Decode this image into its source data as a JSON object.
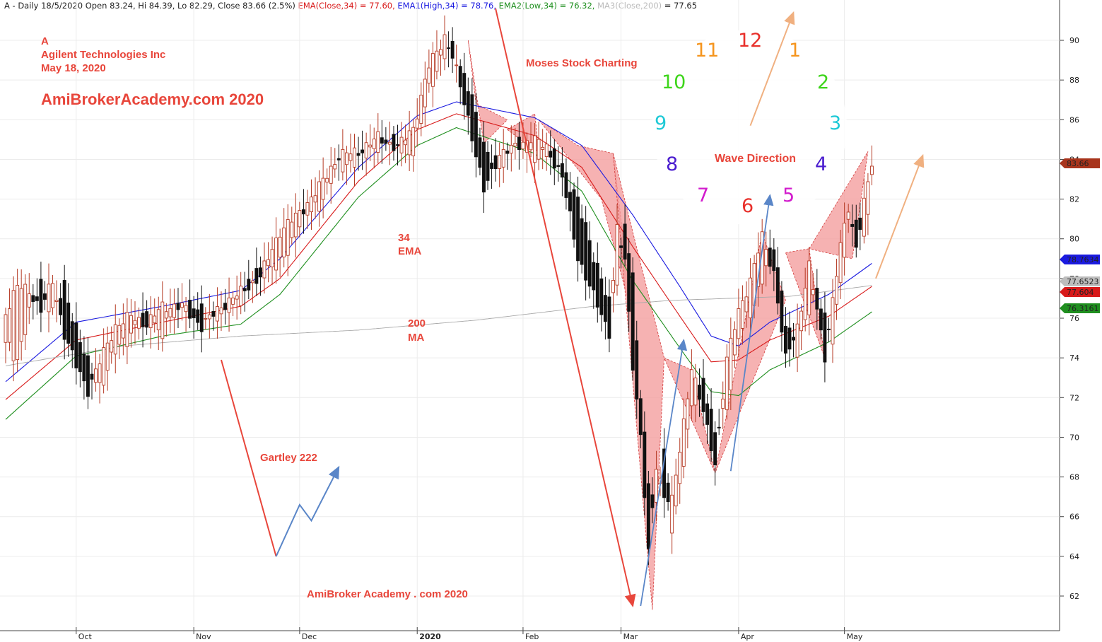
{
  "header": {
    "prefix": "A - Daily 18/5/2020 Open 83.24, Hi 84.39, Lo 82.29, Close 83.66 (2.5%)",
    "ema": "EMA(Close,34) = 77.60,",
    "ema1": "EMA1(High,34) = 78.76,",
    "ema2": "EMA2(Low,34) = 76.32,",
    "ma3": "MA3(Close,200)",
    "ma3_value": "= 77.65"
  },
  "annotations": {
    "ticker": "A",
    "company": "Agilent Technologies Inc",
    "date": "May 18, 2020",
    "site": "AmiBrokerAcademy.com  2020",
    "moses": "Moses Stock Charting",
    "ema_line1": "34",
    "ema_line2": "EMA",
    "ma_line1": "200",
    "ma_line2": "MA",
    "gartley": "Gartley 222",
    "footer_site": "AmiBroker Academy . com  2020",
    "wave": "Wave Direction"
  },
  "clock": [
    {
      "n": "12",
      "color": "#e8302b"
    },
    {
      "n": "1",
      "color": "#f5951e"
    },
    {
      "n": "2",
      "color": "#3dd51a"
    },
    {
      "n": "3",
      "color": "#1ec9d6"
    },
    {
      "n": "4",
      "color": "#4a1ccf"
    },
    {
      "n": "5",
      "color": "#d21ccd"
    },
    {
      "n": "6",
      "color": "#e8302b"
    },
    {
      "n": "7",
      "color": "#d21ccd"
    },
    {
      "n": "8",
      "color": "#4a1ccf"
    },
    {
      "n": "9",
      "color": "#1ec9d6"
    },
    {
      "n": "10",
      "color": "#3dd51a"
    },
    {
      "n": "11",
      "color": "#f5951e"
    }
  ],
  "chart_data": {
    "type": "candlestick",
    "title": "A - Daily 18/5/2020",
    "ylim": [
      60.6,
      92.0
    ],
    "y_ticks": [
      62,
      64,
      66,
      68,
      70,
      72,
      74,
      76,
      78,
      80,
      82,
      84,
      86,
      88,
      90
    ],
    "x_labels": [
      "Oct",
      "Nov",
      "Dec",
      "2020",
      "Feb",
      "Mar",
      "Apr",
      "May"
    ],
    "x_label_index": [
      18,
      48,
      75,
      105,
      132,
      157,
      187,
      214
    ],
    "value_badges": [
      {
        "text": "83.66",
        "value": 83.66,
        "color": "#a8341c"
      },
      {
        "text": "78.7634",
        "value": 78.7634,
        "color": "#1a1ae0"
      },
      {
        "text": "77.6523",
        "value": 77.6523,
        "color": "#bdbdbd"
      },
      {
        "text": "77.604",
        "value": 77.604,
        "color": "#d81a1a"
      },
      {
        "text": "76.3161",
        "value": 76.3161,
        "color": "#1f8f1f"
      }
    ],
    "ohlc_anchors": [
      [
        0,
        74.6,
        76.3
      ],
      [
        3,
        74.0,
        77.6
      ],
      [
        6,
        76.3,
        77.4
      ],
      [
        9,
        77.8,
        76.4
      ],
      [
        12,
        76.3,
        77.9
      ],
      [
        15,
        77.5,
        75.2
      ],
      [
        18,
        75.6,
        73.6
      ],
      [
        21,
        73.6,
        72.4
      ],
      [
        24,
        72.6,
        73.8
      ],
      [
        28,
        74.3,
        75.6
      ],
      [
        32,
        75.3,
        76.1
      ],
      [
        36,
        76.1,
        75.7
      ],
      [
        40,
        75.3,
        76.6
      ],
      [
        45,
        76.8,
        76.6
      ],
      [
        50,
        76.3,
        75.6
      ],
      [
        55,
        76.1,
        76.6
      ],
      [
        60,
        77.1,
        77.3
      ],
      [
        65,
        78.5,
        78.1
      ],
      [
        70,
        78.6,
        80.4
      ],
      [
        75,
        80.8,
        81.3
      ],
      [
        80,
        81.8,
        82.6
      ],
      [
        85,
        83.7,
        84.2
      ],
      [
        90,
        84.0,
        84.4
      ],
      [
        95,
        84.8,
        85.1
      ],
      [
        100,
        84.9,
        84.6
      ],
      [
        104,
        84.2,
        85.6
      ],
      [
        108,
        87.7,
        88.7
      ],
      [
        112,
        89.2,
        90.2
      ],
      [
        114,
        89.8,
        89.2
      ],
      [
        118,
        87.6,
        86.1
      ],
      [
        122,
        84.8,
        82.4
      ],
      [
        126,
        83.4,
        84.3
      ],
      [
        130,
        85.0,
        84.6
      ],
      [
        134,
        84.1,
        85.1
      ],
      [
        138,
        84.4,
        84.6
      ],
      [
        142,
        83.8,
        83.1
      ],
      [
        146,
        81.8,
        79.1
      ],
      [
        150,
        79.3,
        77.1
      ],
      [
        154,
        76.6,
        75.3
      ],
      [
        156,
        78.0,
        80.5
      ],
      [
        158,
        81.0,
        78.8
      ],
      [
        160,
        77.8,
        73.7
      ],
      [
        162,
        72.0,
        70.1
      ],
      [
        164,
        68.1,
        64.1
      ],
      [
        166,
        66.4,
        68.6
      ],
      [
        168,
        69.2,
        67.1
      ],
      [
        170,
        65.6,
        66.8
      ],
      [
        172,
        67.6,
        69.3
      ],
      [
        175,
        71.3,
        73.6
      ],
      [
        178,
        73.1,
        71.2
      ],
      [
        181,
        70.1,
        68.7
      ],
      [
        184,
        71.6,
        73.9
      ],
      [
        187,
        75.1,
        76.4
      ],
      [
        190,
        76.2,
        77.9
      ],
      [
        193,
        78.1,
        80.1
      ],
      [
        196,
        79.6,
        78.3
      ],
      [
        199,
        76.1,
        73.9
      ],
      [
        202,
        74.2,
        75.6
      ],
      [
        205,
        76.6,
        78.6
      ],
      [
        207,
        77.6,
        76.4
      ],
      [
        209,
        75.8,
        74.1
      ],
      [
        211,
        74.9,
        76.9
      ],
      [
        213,
        78.1,
        79.6
      ],
      [
        215,
        80.6,
        81.6
      ],
      [
        217,
        80.9,
        79.6
      ],
      [
        219,
        80.5,
        81.8
      ],
      [
        221,
        82.4,
        83.66
      ]
    ],
    "lines": {
      "ema1_high_34": {
        "color": "#1a1ae0",
        "anchors": [
          [
            0,
            72.8
          ],
          [
            18,
            75.8
          ],
          [
            40,
            76.6
          ],
          [
            60,
            77.4
          ],
          [
            70,
            79.0
          ],
          [
            90,
            83.6
          ],
          [
            105,
            86.2
          ],
          [
            115,
            86.9
          ],
          [
            135,
            86.1
          ],
          [
            147,
            84.7
          ],
          [
            160,
            81.2
          ],
          [
            172,
            77.6
          ],
          [
            180,
            75.1
          ],
          [
            187,
            74.6
          ],
          [
            195,
            75.8
          ],
          [
            210,
            77.2
          ],
          [
            221,
            78.76
          ]
        ]
      },
      "ema_close_34": {
        "color": "#d81a1a",
        "anchors": [
          [
            0,
            71.9
          ],
          [
            18,
            74.9
          ],
          [
            40,
            75.8
          ],
          [
            60,
            76.6
          ],
          [
            70,
            78.0
          ],
          [
            90,
            82.9
          ],
          [
            105,
            85.5
          ],
          [
            115,
            86.3
          ],
          [
            135,
            85.2
          ],
          [
            147,
            83.6
          ],
          [
            160,
            79.6
          ],
          [
            172,
            76.1
          ],
          [
            180,
            73.8
          ],
          [
            187,
            73.9
          ],
          [
            195,
            74.9
          ],
          [
            210,
            76.1
          ],
          [
            221,
            77.6
          ]
        ]
      },
      "ema2_low_34": {
        "color": "#1f8f1f",
        "anchors": [
          [
            0,
            70.9
          ],
          [
            18,
            74.1
          ],
          [
            40,
            75.1
          ],
          [
            60,
            75.7
          ],
          [
            70,
            77.2
          ],
          [
            90,
            82.1
          ],
          [
            105,
            84.7
          ],
          [
            115,
            85.6
          ],
          [
            135,
            84.3
          ],
          [
            147,
            82.4
          ],
          [
            160,
            77.9
          ],
          [
            172,
            74.5
          ],
          [
            180,
            72.3
          ],
          [
            187,
            72.1
          ],
          [
            195,
            73.4
          ],
          [
            210,
            74.8
          ],
          [
            221,
            76.32
          ]
        ]
      },
      "ma_close_200": {
        "color": "#a9a9a9",
        "anchors": [
          [
            0,
            73.6
          ],
          [
            30,
            74.6
          ],
          [
            60,
            75.1
          ],
          [
            90,
            75.4
          ],
          [
            120,
            75.9
          ],
          [
            150,
            76.6
          ],
          [
            170,
            76.9
          ],
          [
            200,
            77.1
          ],
          [
            221,
            77.65
          ]
        ]
      }
    }
  }
}
